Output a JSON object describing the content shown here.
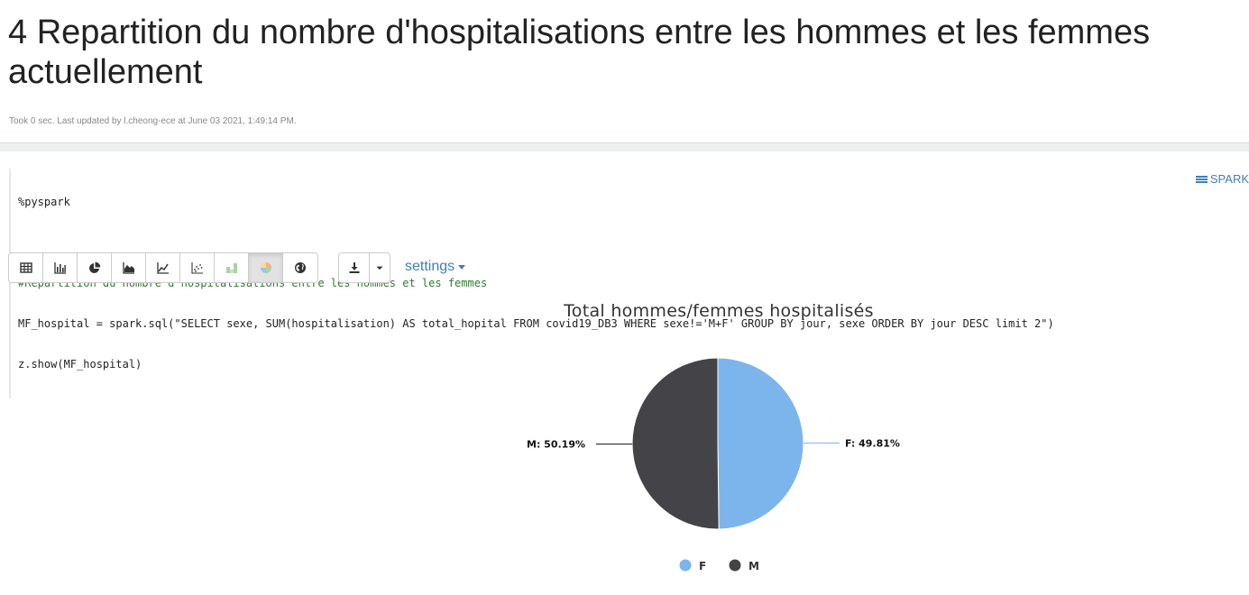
{
  "paragraph": {
    "title": "4 Repartition du nombre d'hospitalisations entre les hommes et les femmes actuellement",
    "updated_text": "Took 0 sec. Last updated by l.cheong-ece at June 03 2021, 1:49:14 PM."
  },
  "editor": {
    "lines": [
      "%pyspark",
      "",
      "#Repartition du nombre d'hospitalisations entre les hommes et les femmes",
      "MF_hospital = spark.sql(\"SELECT sexe, SUM(hospitalisation) AS total_hopital FROM covid19_DB3 WHERE sexe!='M+F' GROUP BY jour, sexe ORDER BY jour DESC limit 2\")",
      "z.show(MF_hospital)"
    ],
    "interpreter_label": "SPARK"
  },
  "toolbar": {
    "buttons": [
      {
        "icon": "table-icon",
        "active": false
      },
      {
        "icon": "bar-chart-icon",
        "active": false
      },
      {
        "icon": "pie-chart-icon",
        "active": false
      },
      {
        "icon": "area-chart-icon",
        "active": false
      },
      {
        "icon": "line-chart-icon",
        "active": false
      },
      {
        "icon": "scatter-chart-icon",
        "active": false
      },
      {
        "icon": "stacked-chart-icon",
        "active": false
      },
      {
        "icon": "colored-pie-icon",
        "active": true
      },
      {
        "icon": "globe-icon",
        "active": false
      }
    ],
    "download_icon": "download-icon",
    "caret_icon": "caret-down-icon",
    "settings_label": "settings"
  },
  "colors": {
    "link": "#3f7fb8",
    "slice_f": "#7cb5ec",
    "slice_m": "#434348"
  },
  "chart_data": {
    "type": "pie",
    "title": "Total hommes/femmes hospitalisés",
    "slices": [
      {
        "name": "F",
        "value": 49.81,
        "label": "F: 49.81%",
        "color": "#7cb5ec"
      },
      {
        "name": "M",
        "value": 50.19,
        "label": "M: 50.19%",
        "color": "#434348"
      }
    ],
    "legend": {
      "placement": "bottom",
      "entries": [
        "F",
        "M"
      ]
    }
  }
}
